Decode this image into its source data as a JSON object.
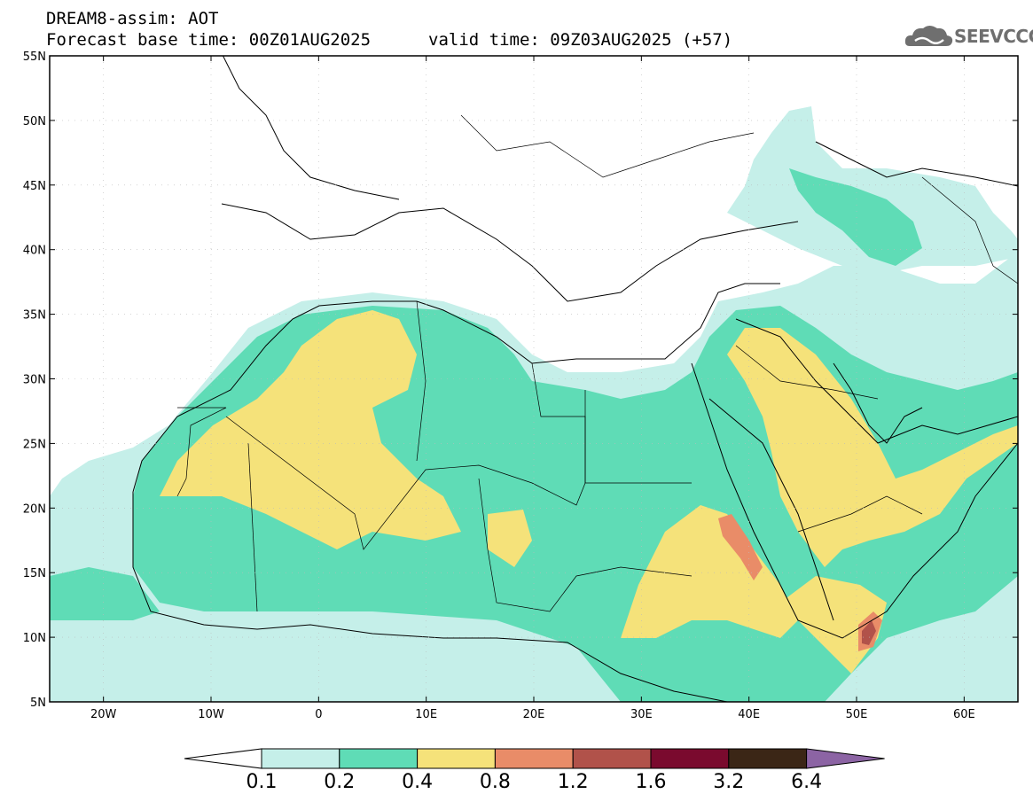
{
  "header": {
    "title": "DREAM8-assim: AOT",
    "base_time": "Forecast base time: 00Z01AUG2025",
    "valid_time": "valid time: 09Z03AUG2025 (+57)",
    "logo_text": "SEEVCCC"
  },
  "axes": {
    "lat_labels": [
      "55N",
      "50N",
      "45N",
      "40N",
      "35N",
      "30N",
      "25N",
      "20N",
      "15N",
      "10N",
      "5N"
    ],
    "lon_labels": [
      "20W",
      "10W",
      "0",
      "10E",
      "20E",
      "30E",
      "40E",
      "50E",
      "60E"
    ]
  },
  "colorbar": {
    "labels": [
      "0.1",
      "0.2",
      "0.4",
      "0.8",
      "1.2",
      "1.6",
      "3.2",
      "6.4"
    ],
    "colors": [
      "#c5efe9",
      "#5fdcb6",
      "#f5e27a",
      "#e98c68",
      "#b1524a",
      "#7a0a2e",
      "#3b2616",
      "#8c64a4"
    ]
  },
  "legend_colors": {
    "light": "#c5efe9",
    "green": "#5fdcb6",
    "yellow": "#f5e27a",
    "orange": "#e98c68",
    "brown": "#b1524a"
  }
}
